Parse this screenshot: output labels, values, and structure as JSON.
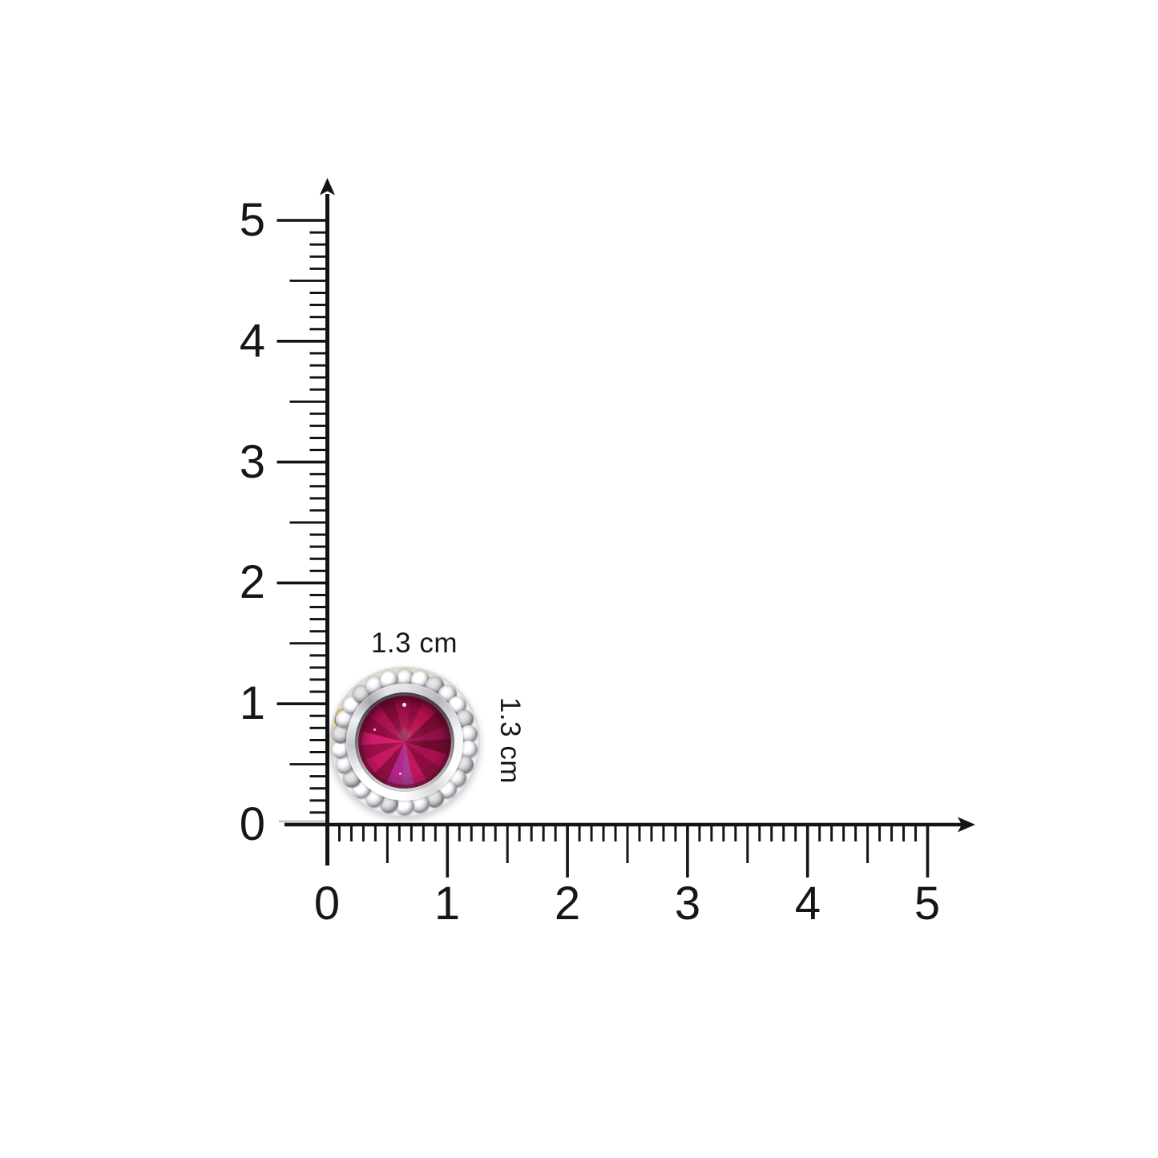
{
  "diagram": {
    "type": "size-measurement-diagram",
    "background_color": "#ffffff",
    "axis_color": "#141414",
    "units": "cm"
  },
  "axes": {
    "x": {
      "labels": [
        "0",
        "1",
        "2",
        "3",
        "4",
        "5"
      ],
      "min": 0,
      "max": 5,
      "major_step": 1,
      "half_step": 0.5,
      "minor_step": 0.1,
      "direction": "right",
      "arrow": true
    },
    "y": {
      "labels_top_to_bottom": [
        "5",
        "4",
        "3",
        "2",
        "1",
        "0"
      ],
      "min": 0,
      "max": 5,
      "major_step": 1,
      "half_step": 0.5,
      "minor_step": 0.1,
      "direction": "up",
      "arrow": true
    }
  },
  "object": {
    "description": "round ruby stud earring with diamond halo in polished silver bezel",
    "width_label": "1.3 cm",
    "height_label": "1.3 cm",
    "halo_stones": 26,
    "colors": {
      "ruby_primary": "#a01048",
      "ruby_dark": "#6f0a31",
      "ruby_bright": "#d01e6a",
      "ruby_violet": "#a93a95",
      "metal_light": "#ffffff",
      "metal_mid": "#c6c6cb",
      "metal_dark": "#92929a",
      "champagne_gold": "#d8c9a3",
      "zero_tick_grey": "#c9c9c9"
    }
  }
}
